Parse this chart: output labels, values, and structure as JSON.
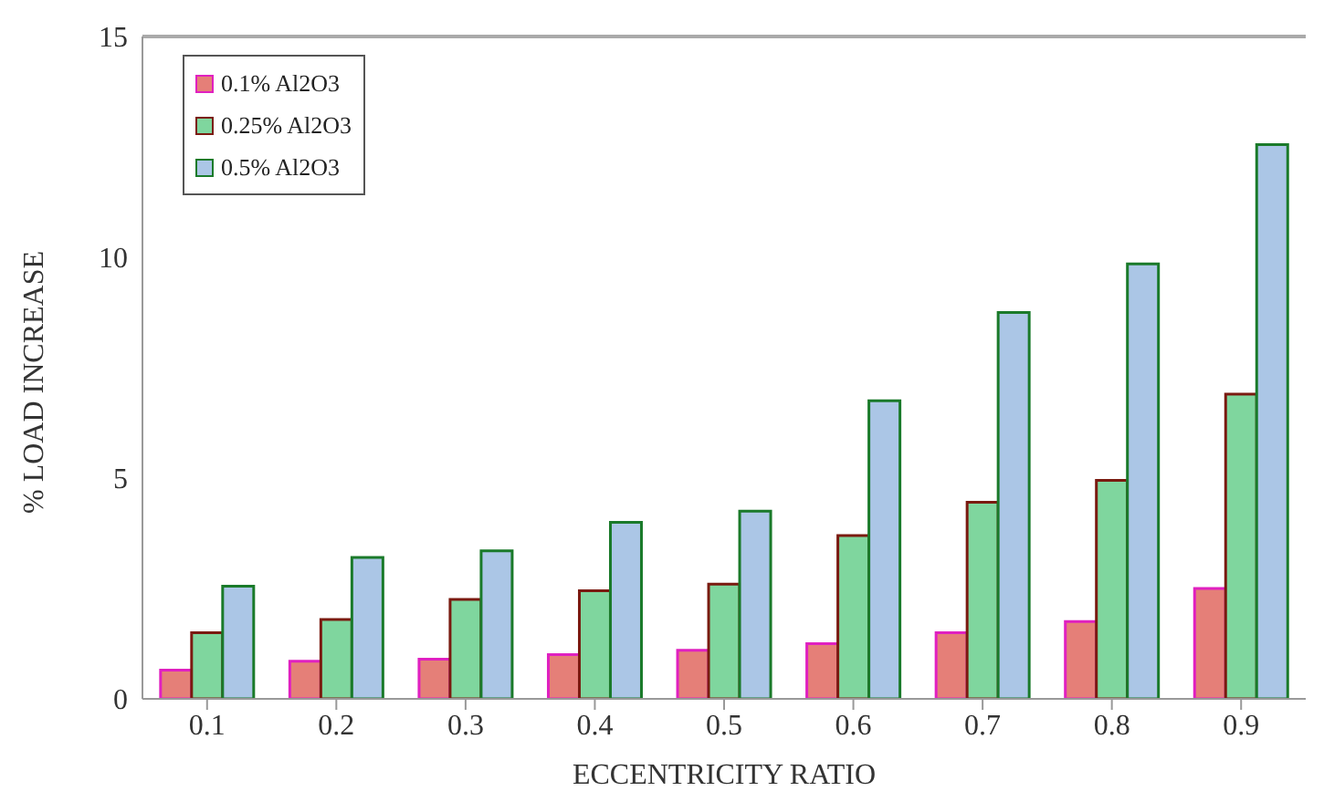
{
  "chart_data": {
    "type": "bar",
    "xlabel": "ECCENTRICITY RATIO",
    "ylabel": "% LOAD INCREASE",
    "categories": [
      "0.1",
      "0.2",
      "0.3",
      "0.4",
      "0.5",
      "0.6",
      "0.7",
      "0.8",
      "0.9"
    ],
    "series": [
      {
        "name": "0.1% Al2O3",
        "color": "#e57f78",
        "values": [
          0.65,
          0.85,
          0.9,
          1.0,
          1.1,
          1.25,
          1.5,
          1.75,
          2.5
        ]
      },
      {
        "name": "0.25% Al2O3",
        "color": "#7fd69e",
        "values": [
          1.5,
          1.8,
          2.25,
          2.45,
          2.6,
          3.7,
          4.45,
          4.95,
          6.9
        ]
      },
      {
        "name": "0.5% Al2O3",
        "color": "#abc6e6",
        "values": [
          2.55,
          3.2,
          3.35,
          4.0,
          4.25,
          6.75,
          8.75,
          9.85,
          12.55
        ]
      }
    ],
    "ylim": [
      0,
      15
    ],
    "yticks": [
      0,
      5,
      10,
      15
    ],
    "legend": "top left"
  }
}
